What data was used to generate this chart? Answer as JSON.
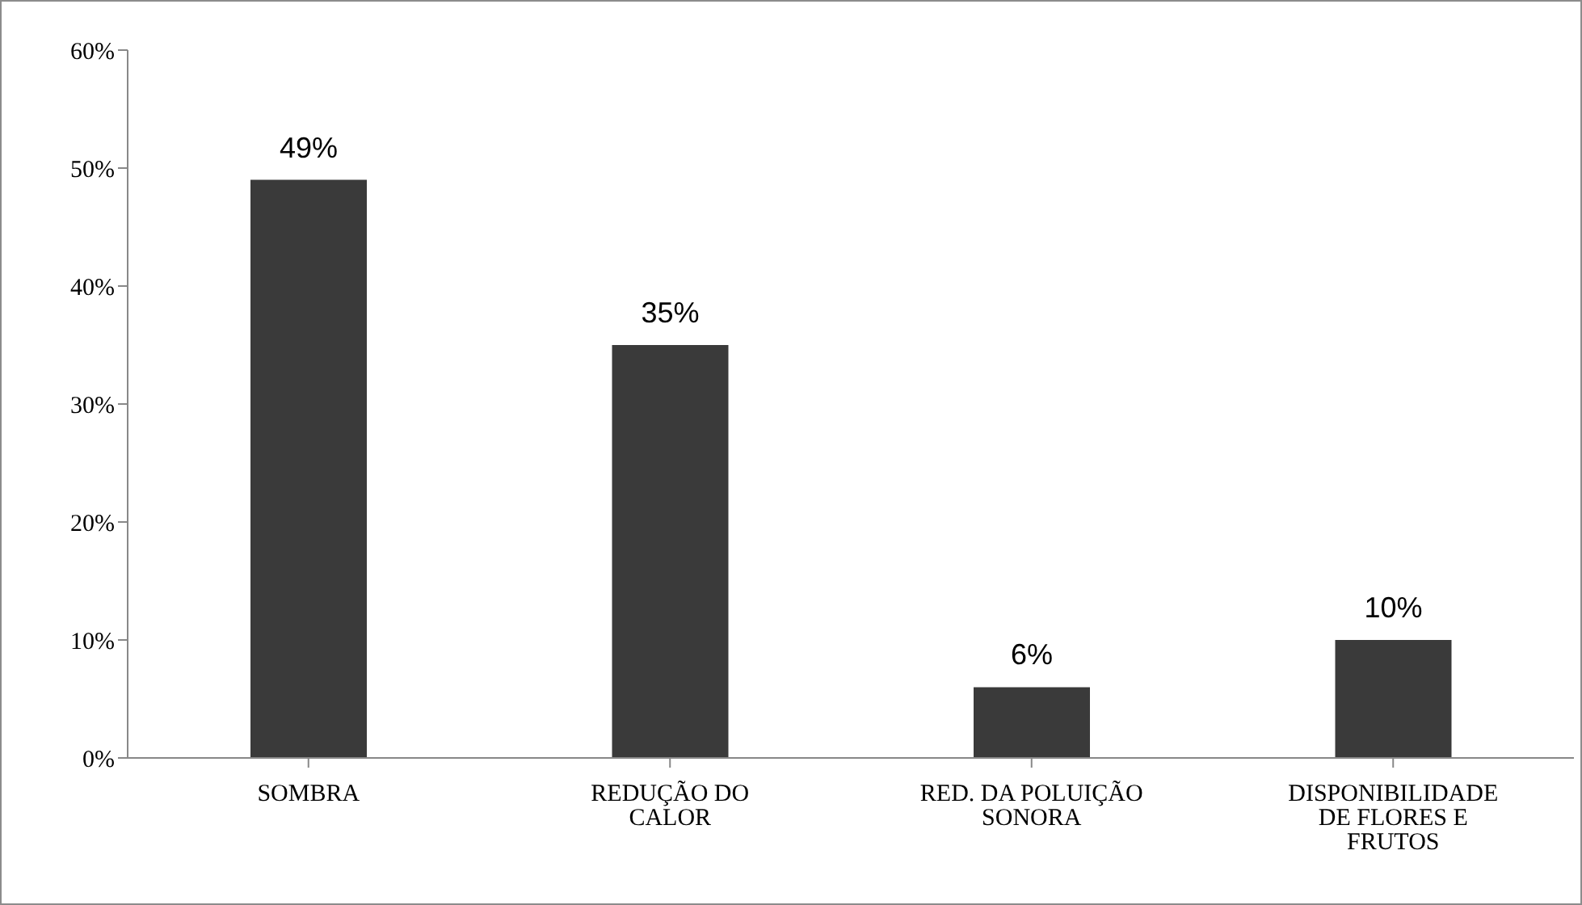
{
  "chart_data": {
    "type": "bar",
    "categories": [
      "SOMBRA",
      "REDUÇÃO DO CALOR",
      "RED. DA POLUIÇÃO SONORA",
      "DISPONIBILIDADE DE FLORES E FRUTOS"
    ],
    "values": [
      49,
      35,
      6,
      10
    ],
    "color": "#3a3a3a",
    "value_labels": [
      "49%",
      "35%",
      "6%",
      "10%"
    ],
    "ylim": [
      0,
      60
    ],
    "yticks": [
      {
        "value": 0,
        "label": "0%"
      },
      {
        "value": 10,
        "label": "10%"
      },
      {
        "value": 20,
        "label": "20%"
      },
      {
        "value": 30,
        "label": "30%"
      },
      {
        "value": 40,
        "label": "40%"
      },
      {
        "value": 50,
        "label": "50%"
      },
      {
        "value": 60,
        "label": "60%"
      }
    ],
    "grid": false
  }
}
